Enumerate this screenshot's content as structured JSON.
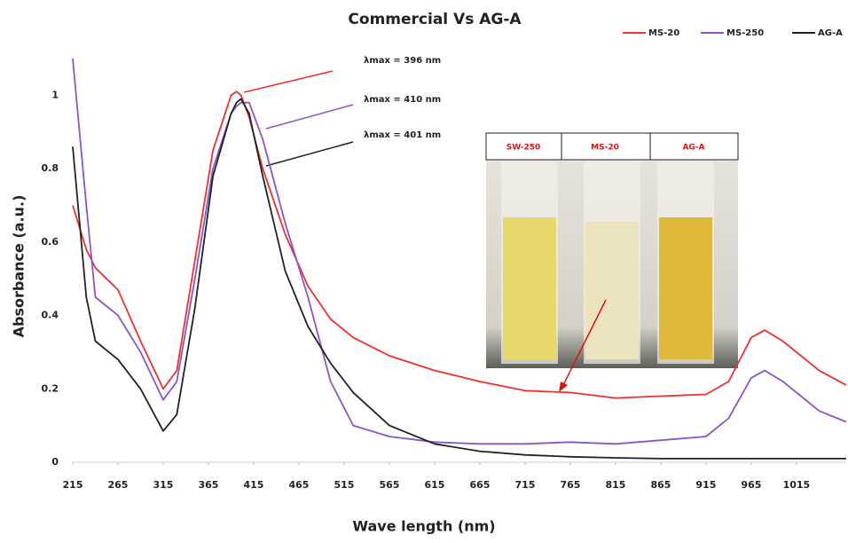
{
  "chart_data": {
    "type": "line",
    "title": "Commercial Vs AG-A",
    "x_label": "Wave length (nm)",
    "y_label": "Absorbance  (a.u.)",
    "x": [
      215,
      230,
      240,
      265,
      290,
      315,
      330,
      350,
      370,
      390,
      396,
      401,
      410,
      425,
      450,
      475,
      500,
      525,
      565,
      615,
      665,
      715,
      765,
      815,
      865,
      915,
      940,
      965,
      980,
      1000,
      1040,
      1070
    ],
    "series": [
      {
        "name": "MS-20",
        "color": "#f03030",
        "values": [
          0.7,
          0.58,
          0.53,
          0.47,
          0.33,
          0.2,
          0.25,
          0.55,
          0.85,
          1.0,
          1.01,
          1.0,
          0.94,
          0.8,
          0.62,
          0.48,
          0.39,
          0.34,
          0.29,
          0.25,
          0.22,
          0.195,
          0.19,
          0.175,
          0.18,
          0.185,
          0.22,
          0.34,
          0.36,
          0.33,
          0.25,
          0.21
        ]
      },
      {
        "name": "MS-250",
        "color": "#8a55c8",
        "values": [
          1.1,
          0.7,
          0.45,
          0.4,
          0.3,
          0.17,
          0.22,
          0.5,
          0.8,
          0.95,
          0.97,
          0.98,
          0.98,
          0.88,
          0.65,
          0.45,
          0.22,
          0.1,
          0.07,
          0.055,
          0.05,
          0.05,
          0.055,
          0.05,
          0.06,
          0.07,
          0.12,
          0.23,
          0.25,
          0.22,
          0.14,
          0.11
        ]
      },
      {
        "name": "AG-A",
        "color": "#222222",
        "values": [
          0.86,
          0.45,
          0.33,
          0.28,
          0.2,
          0.085,
          0.13,
          0.42,
          0.78,
          0.95,
          0.98,
          0.99,
          0.95,
          0.78,
          0.52,
          0.37,
          0.27,
          0.19,
          0.1,
          0.05,
          0.03,
          0.02,
          0.015,
          0.012,
          0.01,
          0.01,
          0.01,
          0.01,
          0.01,
          0.01,
          0.01,
          0.01
        ]
      }
    ],
    "xlim": [
      215,
      1070
    ],
    "ylim": [
      0,
      1.1
    ],
    "xticks": [
      215,
      265,
      315,
      365,
      415,
      465,
      515,
      565,
      615,
      665,
      715,
      765,
      815,
      865,
      915,
      965,
      1015
    ],
    "yticks": [
      0,
      0.2,
      0.4,
      0.6,
      0.8,
      1
    ],
    "grid": false,
    "legend": "top-right",
    "annotations": [
      "λmax = 396 nm",
      "λmax = 410 nm",
      "λmax = 401 nm"
    ],
    "inset_labels": [
      "SW-250",
      "MS-20",
      "AG-A"
    ]
  }
}
